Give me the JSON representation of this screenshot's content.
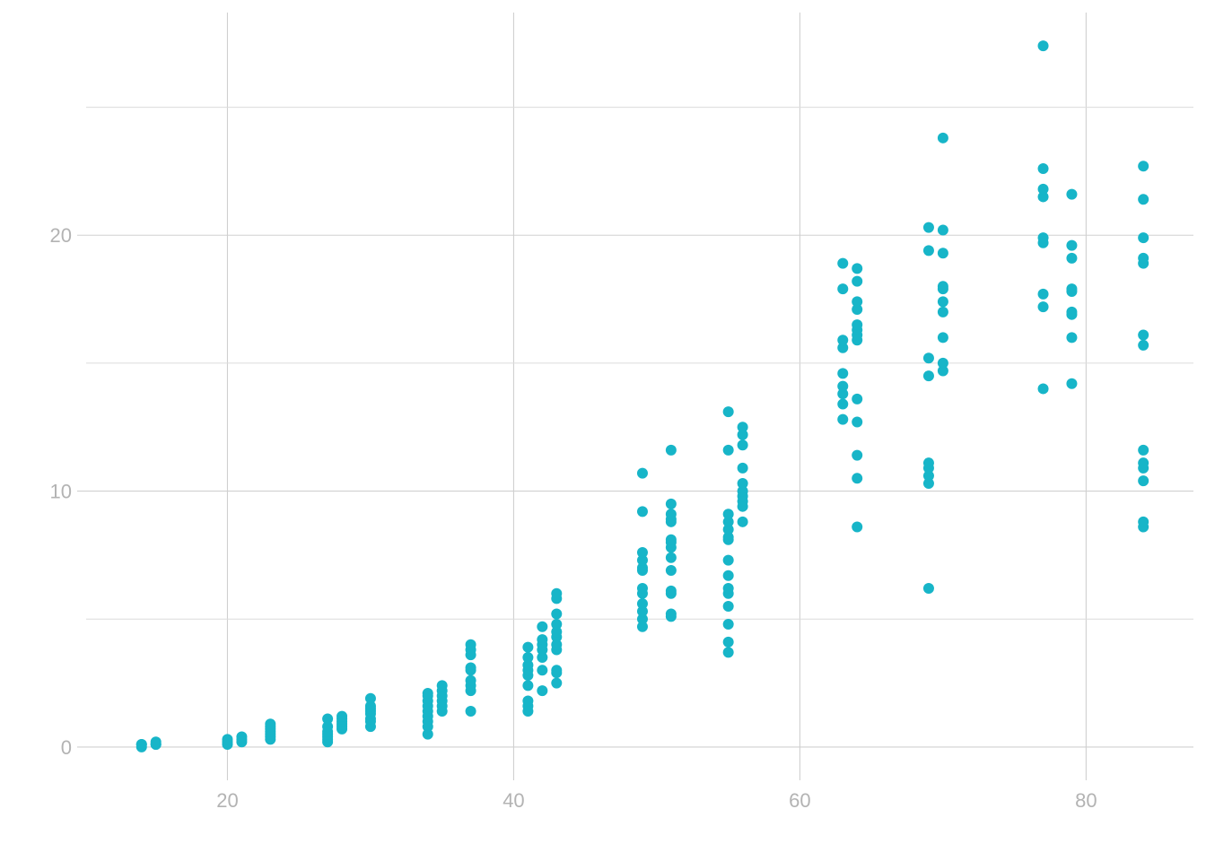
{
  "chart_data": {
    "type": "scatter",
    "title": "",
    "xlabel": "",
    "ylabel": "",
    "xlim": [
      9.5,
      87.5
    ],
    "ylim": [
      -1.3,
      28.7
    ],
    "x_ticks": [
      20,
      40,
      60,
      80
    ],
    "y_ticks": [
      0,
      10,
      20
    ],
    "grid": true,
    "legend": "none",
    "marker_color": "#17B5C8",
    "points": [
      [
        14,
        0.0
      ],
      [
        14,
        0.1
      ],
      [
        14,
        0.1
      ],
      [
        15,
        0.1
      ],
      [
        15,
        0.1
      ],
      [
        15,
        0.2
      ],
      [
        20,
        0.1
      ],
      [
        20,
        0.2
      ],
      [
        20,
        0.3
      ],
      [
        21,
        0.2
      ],
      [
        21,
        0.3
      ],
      [
        21,
        0.4
      ],
      [
        23,
        0.3
      ],
      [
        23,
        0.4
      ],
      [
        23,
        0.5
      ],
      [
        23,
        0.6
      ],
      [
        23,
        0.7
      ],
      [
        23,
        0.8
      ],
      [
        23,
        0.9
      ],
      [
        27,
        0.2
      ],
      [
        27,
        0.3
      ],
      [
        27,
        0.4
      ],
      [
        27,
        0.5
      ],
      [
        27,
        0.6
      ],
      [
        27,
        0.8
      ],
      [
        27,
        1.1
      ],
      [
        28,
        0.7
      ],
      [
        28,
        0.8
      ],
      [
        28,
        0.9
      ],
      [
        28,
        1.0
      ],
      [
        28,
        1.1
      ],
      [
        28,
        1.2
      ],
      [
        30,
        0.8
      ],
      [
        30,
        1.0
      ],
      [
        30,
        1.1
      ],
      [
        30,
        1.3
      ],
      [
        30,
        1.4
      ],
      [
        30,
        1.5
      ],
      [
        30,
        1.6
      ],
      [
        30,
        1.9
      ],
      [
        34,
        0.5
      ],
      [
        34,
        0.8
      ],
      [
        34,
        1.0
      ],
      [
        34,
        1.2
      ],
      [
        34,
        1.4
      ],
      [
        34,
        1.6
      ],
      [
        34,
        1.8
      ],
      [
        34,
        2.0
      ],
      [
        34,
        2.1
      ],
      [
        35,
        1.4
      ],
      [
        35,
        1.6
      ],
      [
        35,
        1.8
      ],
      [
        35,
        2.0
      ],
      [
        35,
        2.2
      ],
      [
        35,
        2.4
      ],
      [
        37,
        1.4
      ],
      [
        37,
        2.2
      ],
      [
        37,
        2.4
      ],
      [
        37,
        2.6
      ],
      [
        37,
        3.0
      ],
      [
        37,
        3.1
      ],
      [
        37,
        3.6
      ],
      [
        37,
        3.8
      ],
      [
        37,
        4.0
      ],
      [
        41,
        1.4
      ],
      [
        41,
        1.6
      ],
      [
        41,
        1.8
      ],
      [
        41,
        2.4
      ],
      [
        41,
        2.8
      ],
      [
        41,
        3.0
      ],
      [
        41,
        3.2
      ],
      [
        41,
        3.5
      ],
      [
        41,
        3.9
      ],
      [
        42,
        2.2
      ],
      [
        42,
        3.0
      ],
      [
        42,
        3.5
      ],
      [
        42,
        3.8
      ],
      [
        42,
        4.0
      ],
      [
        42,
        4.2
      ],
      [
        42,
        4.7
      ],
      [
        43,
        2.5
      ],
      [
        43,
        2.9
      ],
      [
        43,
        3.0
      ],
      [
        43,
        3.8
      ],
      [
        43,
        4.0
      ],
      [
        43,
        4.3
      ],
      [
        43,
        4.5
      ],
      [
        43,
        4.8
      ],
      [
        43,
        5.2
      ],
      [
        43,
        5.8
      ],
      [
        43,
        6.0
      ],
      [
        49,
        4.7
      ],
      [
        49,
        5.0
      ],
      [
        49,
        5.3
      ],
      [
        49,
        5.6
      ],
      [
        49,
        6.0
      ],
      [
        49,
        6.2
      ],
      [
        49,
        6.9
      ],
      [
        49,
        7.0
      ],
      [
        49,
        7.3
      ],
      [
        49,
        7.6
      ],
      [
        49,
        9.2
      ],
      [
        49,
        10.7
      ],
      [
        51,
        5.1
      ],
      [
        51,
        5.2
      ],
      [
        51,
        6.0
      ],
      [
        51,
        6.1
      ],
      [
        51,
        6.9
      ],
      [
        51,
        7.4
      ],
      [
        51,
        7.8
      ],
      [
        51,
        8.0
      ],
      [
        51,
        8.1
      ],
      [
        51,
        8.8
      ],
      [
        51,
        8.9
      ],
      [
        51,
        9.1
      ],
      [
        51,
        9.5
      ],
      [
        51,
        11.6
      ],
      [
        55,
        3.7
      ],
      [
        55,
        4.1
      ],
      [
        55,
        4.8
      ],
      [
        55,
        5.5
      ],
      [
        55,
        6.0
      ],
      [
        55,
        6.2
      ],
      [
        55,
        6.7
      ],
      [
        55,
        7.3
      ],
      [
        55,
        8.1
      ],
      [
        55,
        8.2
      ],
      [
        55,
        8.5
      ],
      [
        55,
        8.8
      ],
      [
        55,
        9.1
      ],
      [
        55,
        11.6
      ],
      [
        55,
        13.1
      ],
      [
        56,
        8.8
      ],
      [
        56,
        9.4
      ],
      [
        56,
        9.6
      ],
      [
        56,
        9.8
      ],
      [
        56,
        10.0
      ],
      [
        56,
        10.3
      ],
      [
        56,
        10.9
      ],
      [
        56,
        11.8
      ],
      [
        56,
        12.2
      ],
      [
        56,
        12.5
      ],
      [
        63,
        12.8
      ],
      [
        63,
        13.4
      ],
      [
        63,
        13.8
      ],
      [
        63,
        14.1
      ],
      [
        63,
        14.6
      ],
      [
        63,
        15.6
      ],
      [
        63,
        15.9
      ],
      [
        63,
        17.9
      ],
      [
        63,
        18.9
      ],
      [
        64,
        8.6
      ],
      [
        64,
        10.5
      ],
      [
        64,
        11.4
      ],
      [
        64,
        12.7
      ],
      [
        64,
        13.6
      ],
      [
        64,
        15.9
      ],
      [
        64,
        16.1
      ],
      [
        64,
        16.3
      ],
      [
        64,
        16.5
      ],
      [
        64,
        17.1
      ],
      [
        64,
        17.4
      ],
      [
        64,
        18.2
      ],
      [
        64,
        18.7
      ],
      [
        69,
        6.2
      ],
      [
        69,
        10.3
      ],
      [
        69,
        10.6
      ],
      [
        69,
        10.9
      ],
      [
        69,
        11.1
      ],
      [
        69,
        14.5
      ],
      [
        69,
        15.2
      ],
      [
        69,
        19.4
      ],
      [
        69,
        20.3
      ],
      [
        70,
        14.7
      ],
      [
        70,
        15.0
      ],
      [
        70,
        16.0
      ],
      [
        70,
        17.0
      ],
      [
        70,
        17.4
      ],
      [
        70,
        17.9
      ],
      [
        70,
        18.0
      ],
      [
        70,
        19.3
      ],
      [
        70,
        20.2
      ],
      [
        70,
        23.8
      ],
      [
        77,
        14.0
      ],
      [
        77,
        17.2
      ],
      [
        77,
        17.7
      ],
      [
        77,
        19.7
      ],
      [
        77,
        19.9
      ],
      [
        77,
        21.5
      ],
      [
        77,
        21.8
      ],
      [
        77,
        22.6
      ],
      [
        77,
        27.4
      ],
      [
        79,
        14.2
      ],
      [
        79,
        16.0
      ],
      [
        79,
        16.9
      ],
      [
        79,
        17.0
      ],
      [
        79,
        17.8
      ],
      [
        79,
        17.9
      ],
      [
        79,
        19.1
      ],
      [
        79,
        19.6
      ],
      [
        79,
        21.6
      ],
      [
        84,
        8.6
      ],
      [
        84,
        8.8
      ],
      [
        84,
        10.4
      ],
      [
        84,
        10.9
      ],
      [
        84,
        11.1
      ],
      [
        84,
        11.6
      ],
      [
        84,
        15.7
      ],
      [
        84,
        16.1
      ],
      [
        84,
        18.9
      ],
      [
        84,
        19.1
      ],
      [
        84,
        19.9
      ],
      [
        84,
        21.4
      ],
      [
        84,
        22.7
      ]
    ]
  }
}
